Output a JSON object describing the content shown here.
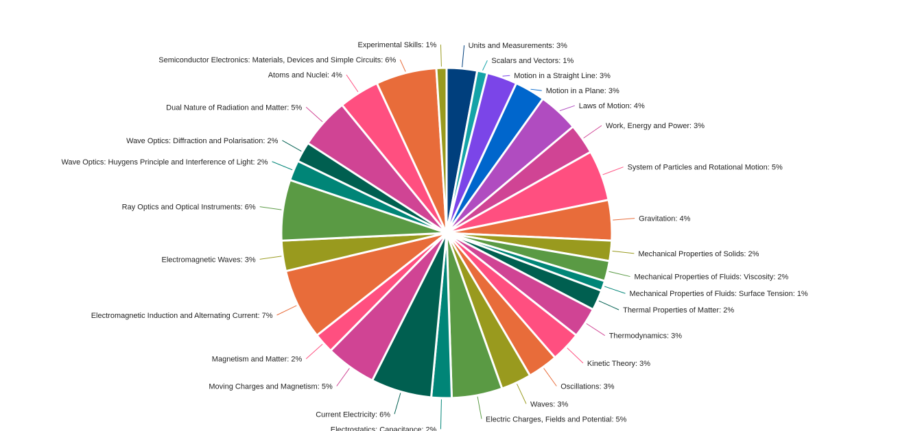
{
  "chart_data": {
    "type": "pie",
    "start": "top",
    "direction": "clockwise",
    "slices": [
      {
        "label": "Units and Measurements",
        "value": 3,
        "color": "#003f7d"
      },
      {
        "label": "Scalars and Vectors",
        "value": 1,
        "color": "#14a3a8"
      },
      {
        "label": "Motion in a Straight Line",
        "value": 3,
        "color": "#7b45e8"
      },
      {
        "label": "Motion in a Plane",
        "value": 3,
        "color": "#0066cc"
      },
      {
        "label": "Laws of Motion",
        "value": 4,
        "color": "#b04cc0"
      },
      {
        "label": "Work, Energy and Power",
        "value": 3,
        "color": "#d04494"
      },
      {
        "label": "System of Particles and Rotational Motion",
        "value": 5,
        "color": "#ff4f80"
      },
      {
        "label": "Gravitation",
        "value": 4,
        "color": "#e86c3a"
      },
      {
        "label": "Mechanical Properties of Solids",
        "value": 2,
        "color": "#999a1e"
      },
      {
        "label": "Mechanical Properties of Fluids: Viscosity",
        "value": 2,
        "color": "#5a9a44"
      },
      {
        "label": "Mechanical Properties of Fluids: Surface Tension",
        "value": 1,
        "color": "#008577"
      },
      {
        "label": "Thermal Properties of Matter",
        "value": 2,
        "color": "#005f50"
      },
      {
        "label": "Thermodynamics",
        "value": 3,
        "color": "#d04494"
      },
      {
        "label": "Kinetic Theory",
        "value": 3,
        "color": "#ff4f80"
      },
      {
        "label": "Oscillations",
        "value": 3,
        "color": "#e86c3a"
      },
      {
        "label": "Waves",
        "value": 3,
        "color": "#999a1e"
      },
      {
        "label": "Electric Charges, Fields and Potential",
        "value": 5,
        "color": "#5a9a44"
      },
      {
        "label": "Electrostatics: Capacitance",
        "value": 2,
        "color": "#008577"
      },
      {
        "label": "Current Electricity",
        "value": 6,
        "color": "#005f50"
      },
      {
        "label": "Moving Charges and Magnetism",
        "value": 5,
        "color": "#d04494"
      },
      {
        "label": "Magnetism and Matter",
        "value": 2,
        "color": "#ff4f80"
      },
      {
        "label": "Electromagnetic Induction and Alternating Current",
        "value": 7,
        "color": "#e86c3a"
      },
      {
        "label": "Electromagnetic Waves",
        "value": 3,
        "color": "#999a1e"
      },
      {
        "label": "Ray Optics and Optical Instruments",
        "value": 6,
        "color": "#5a9a44"
      },
      {
        "label": "Wave Optics: Huygens Principle and Interference of Light",
        "value": 2,
        "color": "#008577"
      },
      {
        "label": "Wave Optics: Diffraction and Polarisation",
        "value": 2,
        "color": "#005f50"
      },
      {
        "label": "Dual Nature of Radiation and Matter",
        "value": 5,
        "color": "#d04494"
      },
      {
        "label": "Atoms and Nuclei",
        "value": 4,
        "color": "#ff4f80"
      },
      {
        "label": "Semiconductor Electronics: Materials, Devices and Simple Circuits",
        "value": 6,
        "color": "#e86c3a"
      },
      {
        "label": "Experimental Skills",
        "value": 1,
        "color": "#999a1e"
      }
    ],
    "unit": "%"
  }
}
